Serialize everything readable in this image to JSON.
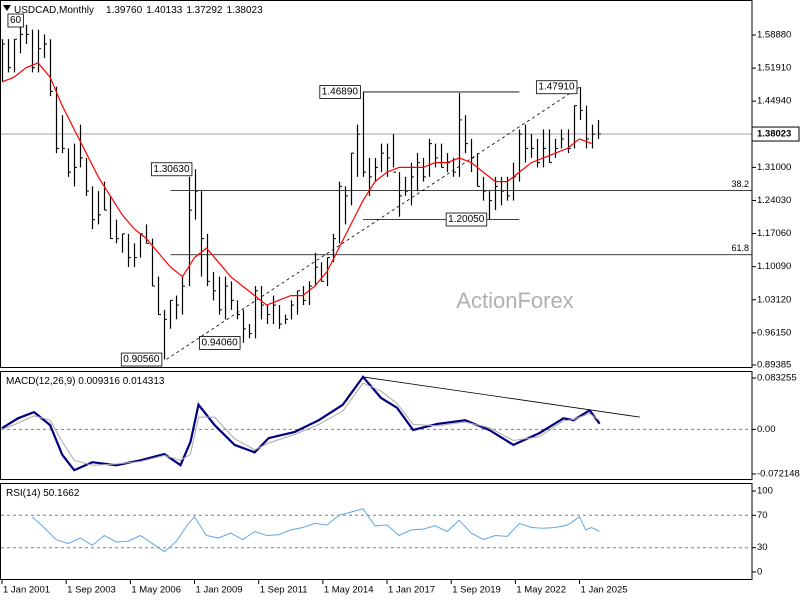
{
  "chart_data": [
    {
      "type": "ohlc",
      "title": "USDCAD,Monthly",
      "quote": [
        "1.39760",
        "1.40133",
        "1.37292",
        "1.38023"
      ],
      "color": "#000000",
      "xlim": [
        "2000-12",
        "2032-03"
      ],
      "ylim": [
        0.8875,
        1.6625
      ],
      "yticks": [
        {
          "value": 1.5888,
          "label": "1.58880"
        },
        {
          "value": 1.5191,
          "label": "1.51910"
        },
        {
          "value": 1.4494,
          "label": "1.44940"
        },
        {
          "value": 1.31,
          "label": "1.31000"
        },
        {
          "value": 1.2403,
          "label": "1.24030"
        },
        {
          "value": 1.1706,
          "label": "1.17060"
        },
        {
          "value": 1.1009,
          "label": "1.10090"
        },
        {
          "value": 1.0312,
          "label": "1.03120"
        },
        {
          "value": 0.9615,
          "label": "0.96150"
        },
        {
          "value": 0.89385,
          "label": "0.89385"
        }
      ],
      "x": [
        "2001-01",
        "2001-04",
        "2001-07",
        "2001-10",
        "2002-01",
        "2002-04",
        "2002-07",
        "2002-10",
        "2003-01",
        "2003-04",
        "2003-07",
        "2003-10",
        "2004-01",
        "2004-04",
        "2004-07",
        "2004-10",
        "2005-01",
        "2005-04",
        "2005-07",
        "2005-10",
        "2006-01",
        "2006-04",
        "2006-07",
        "2006-10",
        "2007-01",
        "2007-04",
        "2007-07",
        "2007-10",
        "2008-01",
        "2008-04",
        "2008-07",
        "2008-10",
        "2009-01",
        "2009-04",
        "2009-07",
        "2009-10",
        "2010-01",
        "2010-04",
        "2010-07",
        "2010-10",
        "2011-01",
        "2011-04",
        "2011-07",
        "2011-10",
        "2012-01",
        "2012-04",
        "2012-07",
        "2012-10",
        "2013-01",
        "2013-04",
        "2013-07",
        "2013-10",
        "2014-01",
        "2014-04",
        "2014-07",
        "2014-10",
        "2015-01",
        "2015-04",
        "2015-07",
        "2015-10",
        "2016-01",
        "2016-04",
        "2016-07",
        "2016-10",
        "2017-01",
        "2017-04",
        "2017-07",
        "2017-10",
        "2018-01",
        "2018-04",
        "2018-07",
        "2018-10",
        "2019-01",
        "2019-04",
        "2019-07",
        "2019-10",
        "2020-01",
        "2020-04",
        "2020-07",
        "2020-10",
        "2021-01",
        "2021-04",
        "2021-07",
        "2021-10",
        "2022-01",
        "2022-04",
        "2022-07",
        "2022-10",
        "2023-01",
        "2023-04",
        "2023-07",
        "2023-10",
        "2024-01",
        "2024-04",
        "2024-07",
        "2024-10",
        "2025-01",
        "2025-04",
        "2025-07",
        "2025-10"
      ],
      "high": [
        1.58,
        1.58,
        1.58,
        1.61,
        1.61,
        1.6,
        1.6,
        1.59,
        1.58,
        1.48,
        1.42,
        1.35,
        1.36,
        1.4,
        1.33,
        1.27,
        1.26,
        1.28,
        1.25,
        1.2,
        1.17,
        1.17,
        1.15,
        1.17,
        1.19,
        1.16,
        1.08,
        1.01,
        1.03,
        1.04,
        1.08,
        1.29,
        1.3063,
        1.26,
        1.17,
        1.09,
        1.08,
        1.08,
        1.07,
        1.03,
        1.01,
        0.98,
        1.06,
        1.06,
        1.02,
        1.04,
        1.02,
        1.0,
        1.03,
        1.05,
        1.06,
        1.07,
        1.13,
        1.11,
        1.12,
        1.17,
        1.28,
        1.27,
        1.34,
        1.4,
        1.4689,
        1.33,
        1.33,
        1.36,
        1.36,
        1.38,
        1.3,
        1.29,
        1.32,
        1.34,
        1.33,
        1.37,
        1.36,
        1.36,
        1.34,
        1.33,
        1.4667,
        1.42,
        1.37,
        1.34,
        1.29,
        1.26,
        1.29,
        1.29,
        1.29,
        1.32,
        1.39,
        1.4,
        1.38,
        1.37,
        1.39,
        1.39,
        1.37,
        1.39,
        1.39,
        1.44,
        1.4791,
        1.44,
        1.4,
        1.41
      ],
      "low": [
        1.49,
        1.51,
        1.51,
        1.55,
        1.57,
        1.51,
        1.51,
        1.54,
        1.46,
        1.34,
        1.34,
        1.29,
        1.27,
        1.31,
        1.25,
        1.18,
        1.19,
        1.22,
        1.16,
        1.15,
        1.13,
        1.1,
        1.1,
        1.12,
        1.15,
        1.06,
        1.0,
        0.9056,
        0.97,
        0.99,
        1.0,
        1.06,
        1.2,
        1.08,
        1.06,
        1.03,
        1.0,
        0.99,
        1.01,
        0.99,
        0.9406,
        0.95,
        0.95,
        0.99,
        0.98,
        0.98,
        0.97,
        0.98,
        0.99,
        1.0,
        1.02,
        1.02,
        1.06,
        1.07,
        1.06,
        1.11,
        1.15,
        1.19,
        1.23,
        1.29,
        1.29,
        1.25,
        1.28,
        1.3,
        1.29,
        1.31,
        1.2061,
        1.25,
        1.23,
        1.26,
        1.28,
        1.29,
        1.31,
        1.31,
        1.3,
        1.29,
        1.29,
        1.34,
        1.3,
        1.27,
        1.24,
        1.2005,
        1.22,
        1.23,
        1.24,
        1.24,
        1.28,
        1.32,
        1.33,
        1.31,
        1.31,
        1.32,
        1.33,
        1.35,
        1.34,
        1.35,
        1.41,
        1.35,
        1.35,
        1.37
      ],
      "close": [
        1.57,
        1.52,
        1.58,
        1.59,
        1.59,
        1.52,
        1.56,
        1.57,
        1.47,
        1.35,
        1.35,
        1.3,
        1.31,
        1.33,
        1.26,
        1.2,
        1.21,
        1.22,
        1.16,
        1.16,
        1.17,
        1.12,
        1.12,
        1.17,
        1.15,
        1.06,
        1.0,
        0.99,
        1.03,
        1.02,
        1.06,
        1.22,
        1.26,
        1.16,
        1.07,
        1.05,
        1.01,
        1.06,
        1.03,
        1.0,
        0.97,
        0.96,
        1.05,
        1.02,
        1.0,
        1.02,
        0.98,
        0.99,
        1.02,
        1.05,
        1.03,
        1.06,
        1.1,
        1.07,
        1.12,
        1.16,
        1.27,
        1.25,
        1.34,
        1.38,
        1.3,
        1.29,
        1.31,
        1.34,
        1.33,
        1.3,
        1.25,
        1.26,
        1.29,
        1.32,
        1.29,
        1.36,
        1.33,
        1.31,
        1.32,
        1.3,
        1.41,
        1.36,
        1.33,
        1.27,
        1.26,
        1.24,
        1.27,
        1.26,
        1.25,
        1.29,
        1.38,
        1.35,
        1.35,
        1.32,
        1.35,
        1.32,
        1.35,
        1.37,
        1.35,
        1.44,
        1.43,
        1.37,
        1.38,
        1.38023
      ],
      "ma": {
        "color": "#ff0000",
        "x": [
          "2001-01",
          "2001-07",
          "2002-01",
          "2002-07",
          "2003-01",
          "2003-07",
          "2004-01",
          "2004-07",
          "2005-01",
          "2005-07",
          "2006-01",
          "2006-07",
          "2007-01",
          "2007-07",
          "2008-01",
          "2008-07",
          "2009-01",
          "2009-07",
          "2010-01",
          "2010-07",
          "2011-01",
          "2011-07",
          "2012-01",
          "2012-07",
          "2013-01",
          "2013-07",
          "2014-01",
          "2014-07",
          "2015-01",
          "2015-07",
          "2016-01",
          "2016-07",
          "2017-01",
          "2017-07",
          "2018-01",
          "2018-07",
          "2019-01",
          "2019-07",
          "2020-01",
          "2020-07",
          "2021-01",
          "2021-07",
          "2022-01",
          "2022-07",
          "2023-01",
          "2023-07",
          "2024-01",
          "2024-07",
          "2025-01",
          "2025-07"
        ],
        "values": [
          1.49,
          1.5,
          1.52,
          1.53,
          1.5,
          1.44,
          1.39,
          1.34,
          1.29,
          1.25,
          1.21,
          1.18,
          1.16,
          1.13,
          1.1,
          1.08,
          1.12,
          1.14,
          1.11,
          1.08,
          1.06,
          1.04,
          1.02,
          1.03,
          1.04,
          1.04,
          1.06,
          1.09,
          1.14,
          1.19,
          1.24,
          1.28,
          1.3,
          1.31,
          1.31,
          1.31,
          1.32,
          1.32,
          1.33,
          1.32,
          1.3,
          1.28,
          1.28,
          1.3,
          1.32,
          1.33,
          1.34,
          1.35,
          1.37,
          1.36
        ]
      },
      "levels": [
        {
          "value": 1.261,
          "label": "38.2",
          "from": "2008-01"
        },
        {
          "value": 1.126,
          "label": "61.8",
          "from": "2008-01"
        }
      ],
      "segments": [
        {
          "x": [
            "2016-01",
            "2022-07"
          ],
          "values": [
            1.4689,
            1.4689
          ]
        },
        {
          "x": [
            "2016-01",
            "2022-07"
          ],
          "values": [
            1.2005,
            1.2005
          ]
        },
        {
          "x": [
            "2007-11",
            "2025-01"
          ],
          "values": [
            0.9056,
            1.4791
          ],
          "dashed": true
        }
      ],
      "annotations": [
        {
          "x": "2002-01",
          "value": 1.6196,
          "label": "60"
        },
        {
          "x": "2016-01",
          "value": 1.4689,
          "label": "1.46890"
        },
        {
          "x": "2009-01",
          "value": 1.3063,
          "label": "1.30630"
        },
        {
          "x": "2025-01",
          "value": 1.4791,
          "label": "1.47910"
        },
        {
          "x": "2021-04",
          "value": 1.2005,
          "label": "1.20050"
        },
        {
          "x": "2007-10",
          "value": 0.9056,
          "label": "0.90560"
        },
        {
          "x": "2011-01",
          "value": 0.9406,
          "label": "0.94060"
        }
      ],
      "last": {
        "value": 1.38023,
        "label": "1.38023"
      },
      "watermark": "ActionForex"
    },
    {
      "type": "line",
      "title": "MACD(12,26,9) 0.009316 0.014313",
      "xlim": [
        "2000-12",
        "2032-03"
      ],
      "ylim": [
        -0.0819,
        0.0946
      ],
      "yticks": [
        0.083255,
        {
          "value": 0,
          "label": "0.00"
        },
        -0.072148
      ],
      "dashed_levels": [
        0
      ],
      "x": [
        "2001-01",
        "2001-09",
        "2002-05",
        "2003-01",
        "2003-07",
        "2004-01",
        "2004-10",
        "2005-10",
        "2006-10",
        "2007-10",
        "2008-06",
        "2008-11",
        "2009-03",
        "2009-11",
        "2010-09",
        "2011-07",
        "2012-02",
        "2013-03",
        "2014-03",
        "2015-03",
        "2016-01",
        "2016-10",
        "2017-06",
        "2018-02",
        "2019-02",
        "2020-04",
        "2021-04",
        "2022-04",
        "2023-05",
        "2024-05",
        "2024-10",
        "2025-06",
        "2025-11"
      ],
      "series": [
        {
          "color": "#000080",
          "values": [
            0.002,
            0.018,
            0.028,
            0.007,
            -0.041,
            -0.066,
            -0.053,
            -0.058,
            -0.05,
            -0.04,
            -0.058,
            -0.02,
            0.04,
            0.007,
            -0.025,
            -0.037,
            -0.014,
            -0.004,
            0.015,
            0.04,
            0.085,
            0.051,
            0.035,
            -0.001,
            0.009,
            0.015,
            -0.001,
            -0.025,
            -0.006,
            0.018,
            0.015,
            0.031,
            0.009316
          ]
        },
        {
          "color": "#a9a9a9",
          "values": [
            0.0,
            0.01,
            0.022,
            0.015,
            -0.02,
            -0.05,
            -0.058,
            -0.056,
            -0.052,
            -0.042,
            -0.05,
            -0.04,
            0.02,
            0.02,
            -0.015,
            -0.033,
            -0.022,
            -0.008,
            0.008,
            0.03,
            0.075,
            0.062,
            0.042,
            0.008,
            0.006,
            0.012,
            0.003,
            -0.018,
            -0.012,
            0.014,
            0.016,
            0.026,
            0.014313
          ]
        }
      ],
      "segments": [
        {
          "x": [
            "2016-01",
            "2027-07"
          ],
          "values": [
            0.085,
            0.02
          ]
        }
      ]
    },
    {
      "type": "line",
      "title": "RSI(14) 50.1662",
      "xlim": [
        "2000-12",
        "2032-03"
      ],
      "ylim": [
        -9.9,
        109.9
      ],
      "yticks": [
        100,
        70,
        30,
        0
      ],
      "dashed_levels": [
        70,
        30
      ],
      "xticks": [
        {
          "value": "2001-01",
          "label": "1 Jan 2001"
        },
        {
          "value": "2003-09",
          "label": "1 Sep 2003"
        },
        {
          "value": "2006-05",
          "label": "1 May 2006"
        },
        {
          "value": "2009-01",
          "label": "1 Jan 2009"
        },
        {
          "value": "2011-09",
          "label": "1 Sep 2011"
        },
        {
          "value": "2014-05",
          "label": "1 May 2014"
        },
        {
          "value": "2017-01",
          "label": "1 Jan 2017"
        },
        {
          "value": "2019-09",
          "label": "1 Sep 2019"
        },
        {
          "value": "2022-05",
          "label": "1 May 2022"
        },
        {
          "value": "2025-01",
          "label": "1 Jan 2025"
        }
      ],
      "x": [
        "2002-04",
        "2002-10",
        "2003-04",
        "2003-10",
        "2004-04",
        "2004-10",
        "2005-04",
        "2005-10",
        "2006-04",
        "2006-10",
        "2007-04",
        "2007-10",
        "2008-04",
        "2008-10",
        "2009-01",
        "2009-07",
        "2010-01",
        "2010-07",
        "2011-01",
        "2011-07",
        "2012-01",
        "2012-07",
        "2013-01",
        "2013-07",
        "2014-01",
        "2014-07",
        "2015-01",
        "2015-07",
        "2016-01",
        "2016-07",
        "2017-01",
        "2017-07",
        "2018-01",
        "2018-07",
        "2019-01",
        "2019-07",
        "2020-01",
        "2020-07",
        "2021-01",
        "2021-07",
        "2022-01",
        "2022-07",
        "2023-01",
        "2023-07",
        "2024-01",
        "2024-07",
        "2025-01",
        "2025-04",
        "2025-07",
        "2025-11"
      ],
      "series": [
        {
          "color": "#5fa8e8",
          "values": [
            68,
            55,
            40,
            35,
            42,
            33,
            45,
            37,
            38,
            45,
            35,
            25,
            38,
            60,
            68,
            45,
            42,
            48,
            40,
            50,
            45,
            46,
            52,
            55,
            60,
            58,
            70,
            74,
            78,
            57,
            58,
            45,
            52,
            53,
            57,
            50,
            64,
            48,
            40,
            45,
            44,
            60,
            55,
            54,
            55,
            58,
            68,
            52,
            55,
            50.1662
          ]
        }
      ]
    }
  ]
}
